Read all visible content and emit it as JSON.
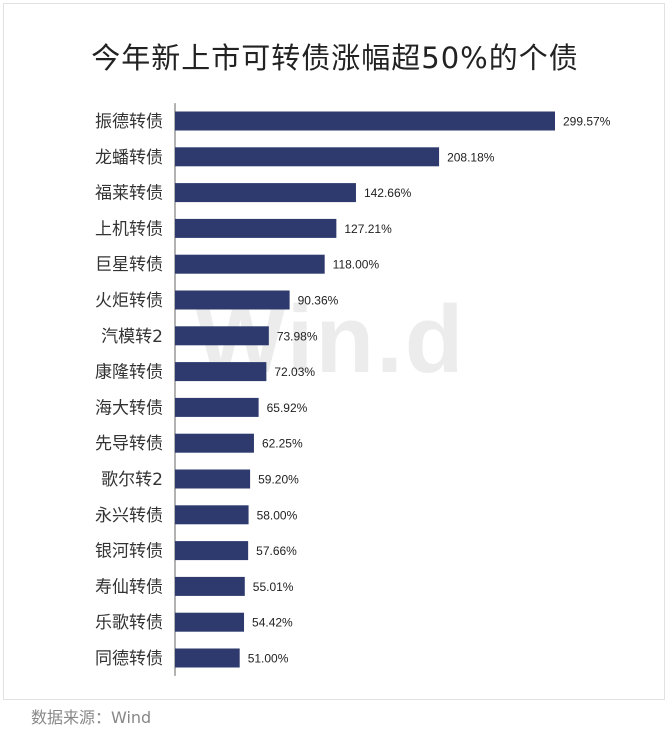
{
  "chart_data": {
    "type": "bar",
    "orientation": "horizontal",
    "title": "今年新上市可转债涨幅超50%的个债",
    "categories": [
      "振德转债",
      "龙蟠转债",
      "福莱转债",
      "上机转债",
      "巨星转债",
      "火炬转债",
      "汽模转2",
      "康隆转债",
      "海大转债",
      "先导转债",
      "歌尔转2",
      "永兴转债",
      "银河转债",
      "寿仙转债",
      "乐歌转债",
      "同德转债"
    ],
    "values": [
      299.57,
      208.18,
      142.66,
      127.21,
      118.0,
      90.36,
      73.98,
      72.03,
      65.92,
      62.25,
      59.2,
      58.0,
      57.66,
      55.01,
      54.42,
      51.0
    ],
    "value_labels": [
      "299.57%",
      "208.18%",
      "142.66%",
      "127.21%",
      "118.00%",
      "90.36%",
      "73.98%",
      "72.03%",
      "65.92%",
      "62.25%",
      "59.20%",
      "58.00%",
      "57.66%",
      "55.01%",
      "54.42%",
      "51.00%"
    ],
    "unit": "%",
    "bar_color": "#2e3a6e",
    "grid": false,
    "xlabel": "",
    "ylabel": ""
  },
  "watermark": "Win.d",
  "source": "数据来源：Wind"
}
